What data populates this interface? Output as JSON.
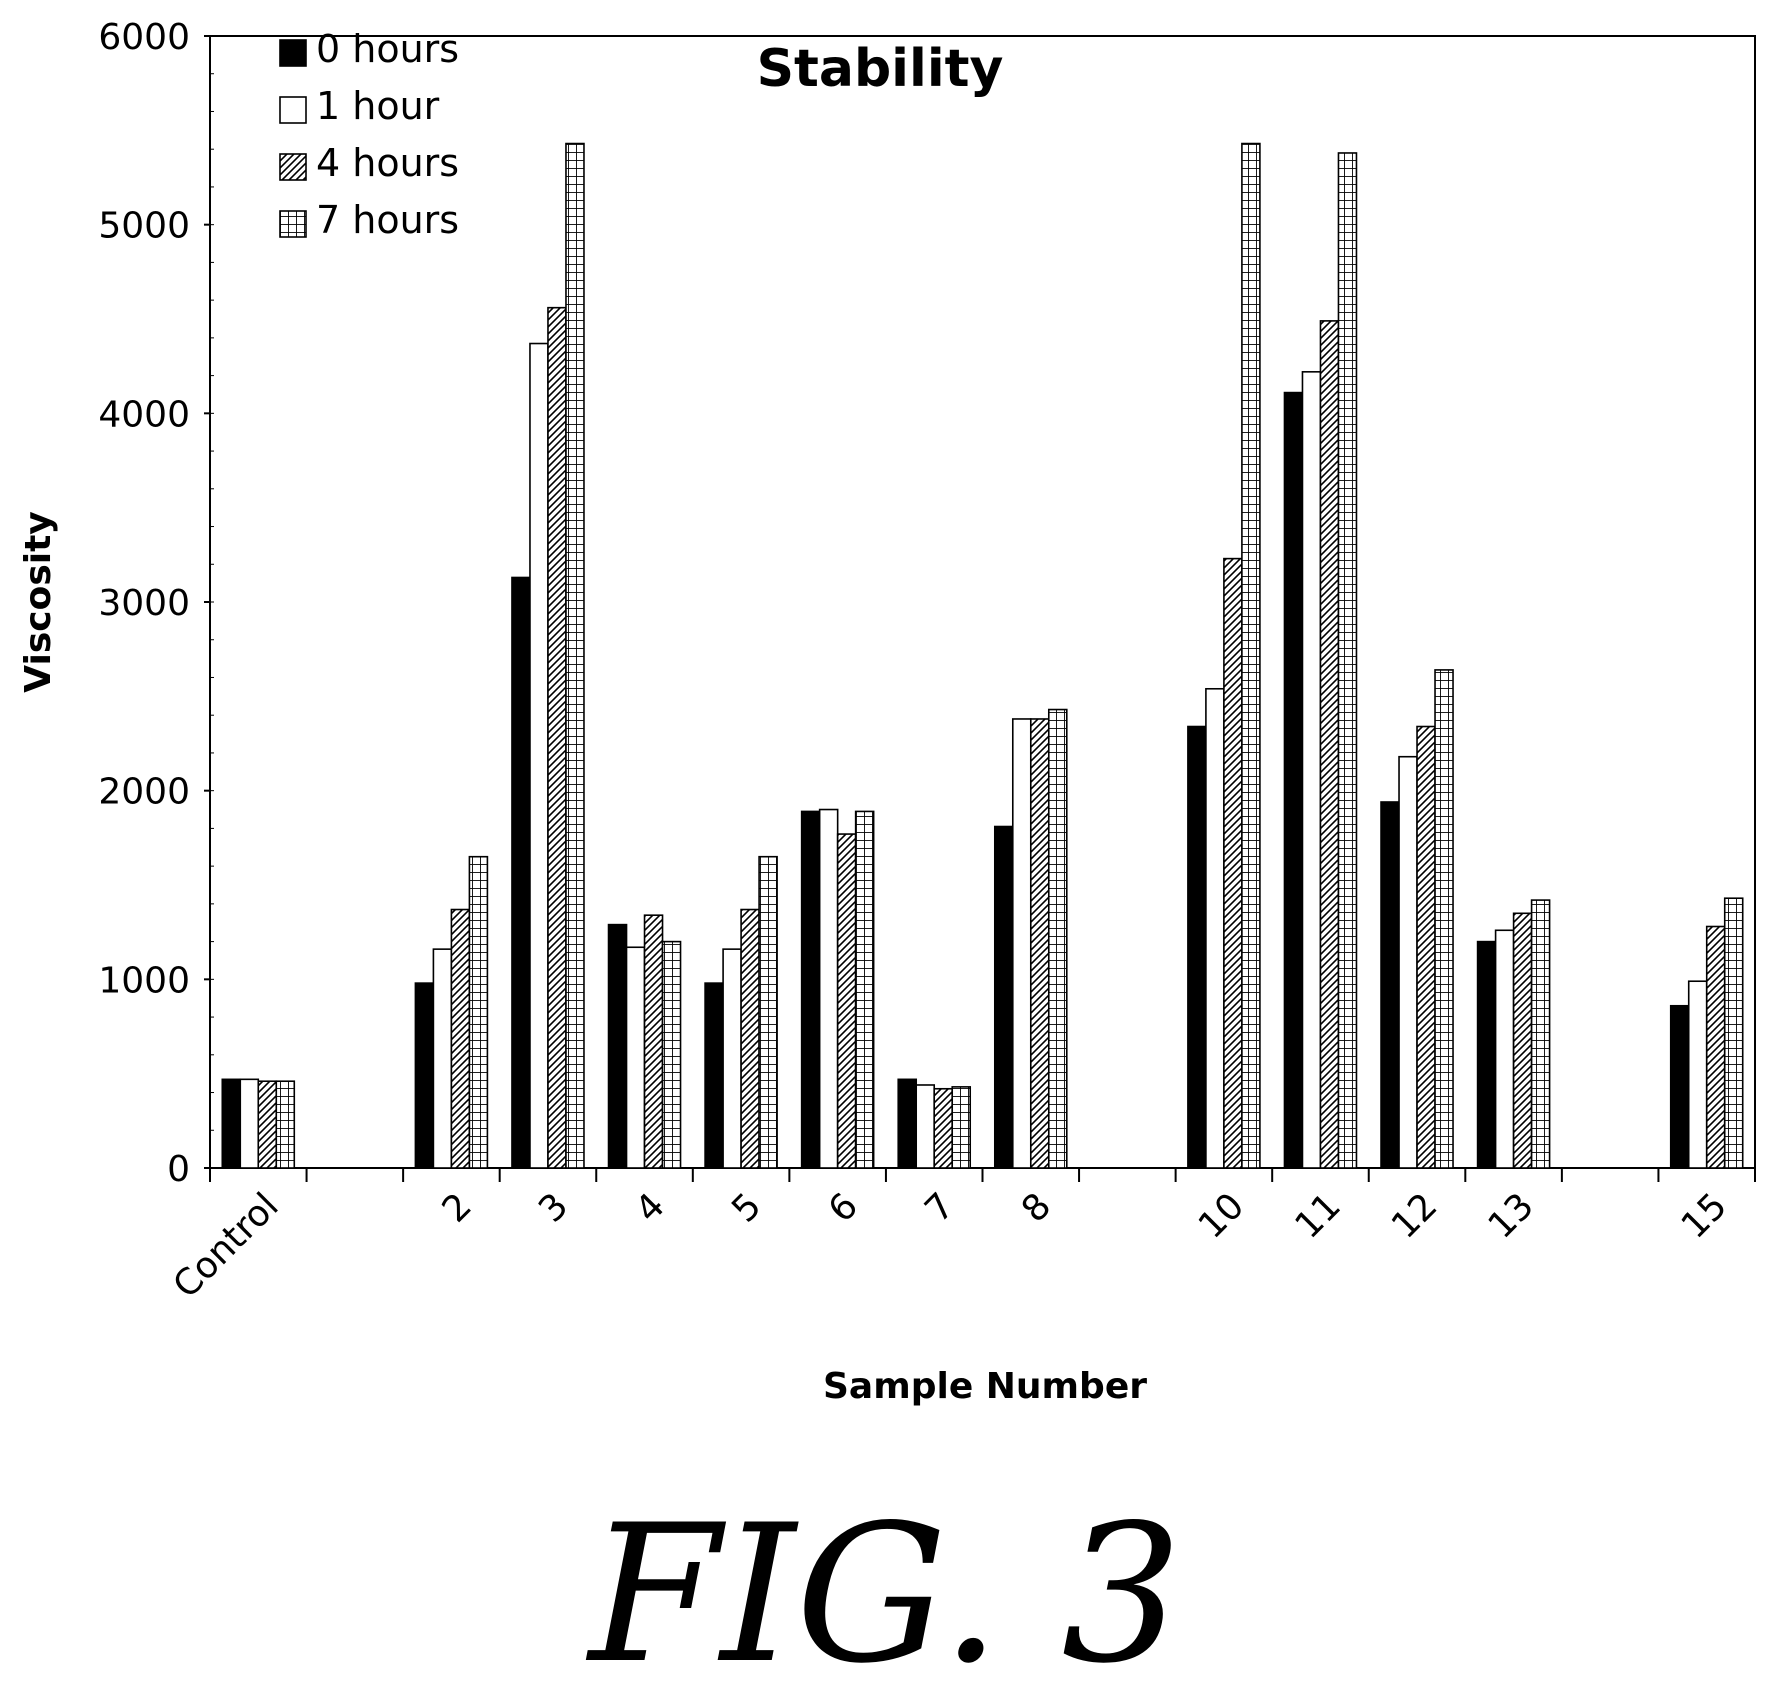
{
  "chart_data": {
    "type": "bar",
    "title": "Stability",
    "xlabel": "Sample Number",
    "ylabel": "Viscosity",
    "ylim": [
      0,
      6000
    ],
    "y_ticks": [
      "0",
      "1000",
      "2000",
      "3000",
      "4000",
      "5000",
      "6000"
    ],
    "grid": false,
    "legend_position": "top-left",
    "categories": [
      "Control",
      "",
      "2",
      "3",
      "4",
      "5",
      "6",
      "7",
      "8",
      "",
      "10",
      "11",
      "12",
      "13",
      "",
      "15"
    ],
    "series": [
      {
        "name": "0 hours",
        "pattern": "solid",
        "values": [
          470,
          null,
          980,
          3130,
          1290,
          980,
          1890,
          470,
          1810,
          null,
          2340,
          4110,
          1940,
          1200,
          null,
          860
        ]
      },
      {
        "name": "1 hour",
        "pattern": "white",
        "values": [
          470,
          null,
          1160,
          4370,
          1170,
          1160,
          1900,
          440,
          2380,
          null,
          2540,
          4220,
          2180,
          1260,
          null,
          990
        ]
      },
      {
        "name": "4 hours",
        "pattern": "diagonal",
        "values": [
          460,
          null,
          1370,
          4560,
          1340,
          1370,
          1770,
          420,
          2380,
          null,
          3230,
          4490,
          2340,
          1350,
          null,
          1280
        ]
      },
      {
        "name": "7 hours",
        "pattern": "grid",
        "values": [
          460,
          null,
          1650,
          5430,
          1200,
          1650,
          1890,
          430,
          2430,
          null,
          5430,
          5380,
          2640,
          1420,
          null,
          1430
        ]
      }
    ]
  },
  "figure_label": "FIG. 3"
}
